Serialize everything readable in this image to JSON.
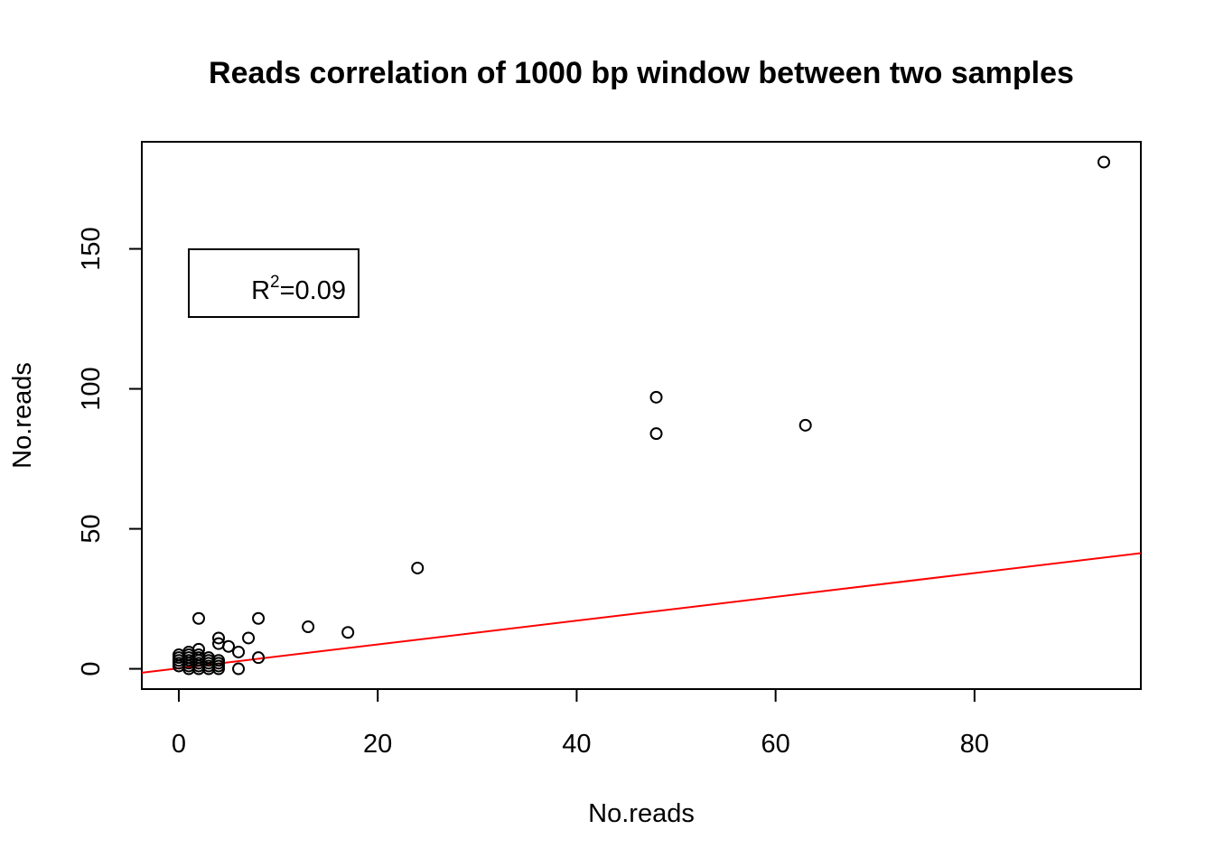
{
  "chart_data": {
    "type": "scatter",
    "title": "Reads correlation of 1000 bp window between two samples",
    "xlabel": "No.reads",
    "ylabel": "No.reads",
    "xlim": [
      -3.72,
      96.72
    ],
    "ylim": [
      -7.24,
      188.24
    ],
    "xticks": [
      0,
      20,
      40,
      60,
      80
    ],
    "yticks": [
      0,
      50,
      100,
      150
    ],
    "grid": false,
    "marker": "open-circle",
    "point_color": "#000000",
    "points": [
      {
        "x": 0,
        "y": 1
      },
      {
        "x": 0,
        "y": 2
      },
      {
        "x": 0,
        "y": 3
      },
      {
        "x": 0,
        "y": 4
      },
      {
        "x": 0,
        "y": 5
      },
      {
        "x": 1,
        "y": 0
      },
      {
        "x": 1,
        "y": 1
      },
      {
        "x": 1,
        "y": 2
      },
      {
        "x": 1,
        "y": 3
      },
      {
        "x": 1,
        "y": 4
      },
      {
        "x": 1,
        "y": 5
      },
      {
        "x": 1,
        "y": 6
      },
      {
        "x": 2,
        "y": 0
      },
      {
        "x": 2,
        "y": 1
      },
      {
        "x": 2,
        "y": 2
      },
      {
        "x": 2,
        "y": 3
      },
      {
        "x": 2,
        "y": 4
      },
      {
        "x": 2,
        "y": 5
      },
      {
        "x": 2,
        "y": 7
      },
      {
        "x": 2,
        "y": 18
      },
      {
        "x": 3,
        "y": 0
      },
      {
        "x": 3,
        "y": 1
      },
      {
        "x": 3,
        "y": 2
      },
      {
        "x": 3,
        "y": 3
      },
      {
        "x": 3,
        "y": 4
      },
      {
        "x": 4,
        "y": 0
      },
      {
        "x": 4,
        "y": 1
      },
      {
        "x": 4,
        "y": 2
      },
      {
        "x": 4,
        "y": 3
      },
      {
        "x": 4,
        "y": 9
      },
      {
        "x": 4,
        "y": 11
      },
      {
        "x": 5,
        "y": 8
      },
      {
        "x": 6,
        "y": 0
      },
      {
        "x": 6,
        "y": 6
      },
      {
        "x": 7,
        "y": 11
      },
      {
        "x": 8,
        "y": 4
      },
      {
        "x": 8,
        "y": 18
      },
      {
        "x": 13,
        "y": 15
      },
      {
        "x": 17,
        "y": 13
      },
      {
        "x": 24,
        "y": 36
      },
      {
        "x": 48,
        "y": 84
      },
      {
        "x": 48,
        "y": 97
      },
      {
        "x": 63,
        "y": 87
      },
      {
        "x": 93,
        "y": 181
      }
    ],
    "fit_line": {
      "color": "#ff0000",
      "intercept": 0.2,
      "slope": 0.425
    },
    "legend": {
      "position": "top-left",
      "label_base": "R",
      "label_sup": "2",
      "label_rest": "=0.09"
    }
  }
}
